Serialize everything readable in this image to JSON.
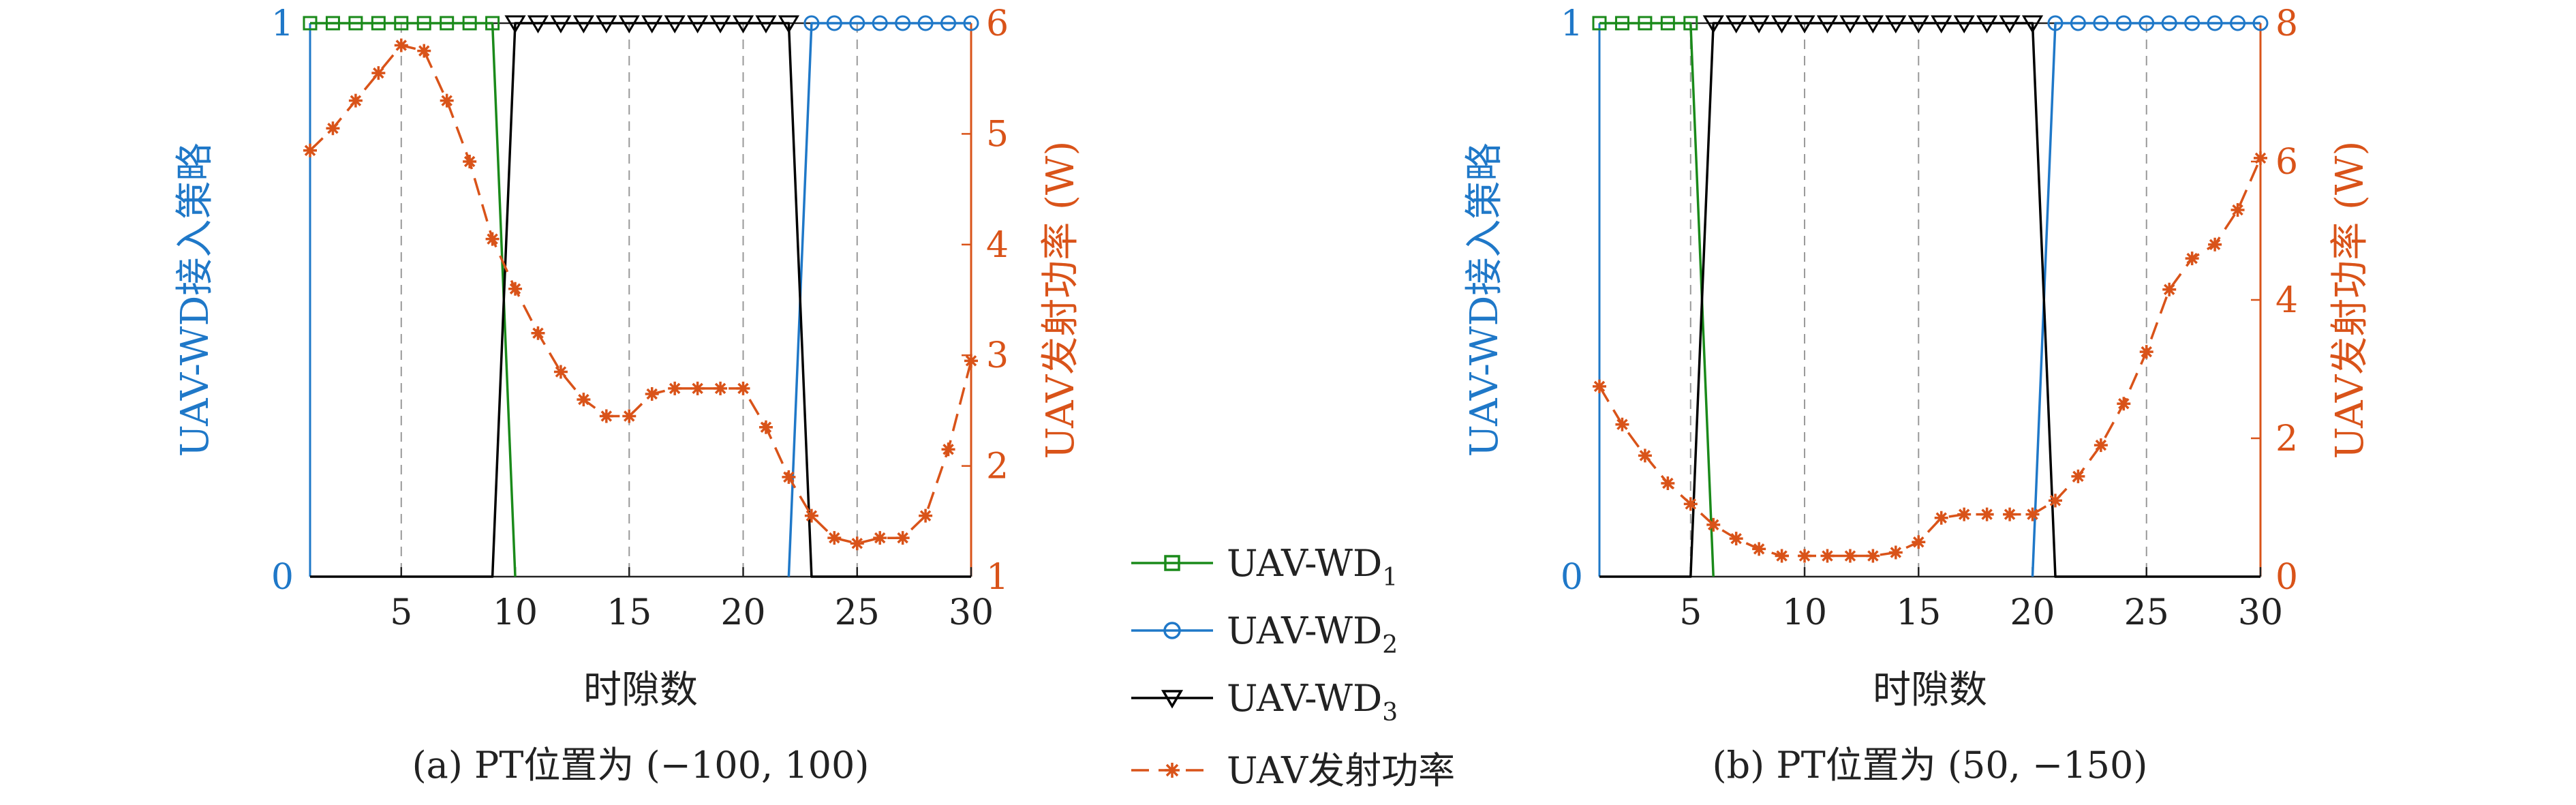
{
  "colors": {
    "left_axis": "#1f78c8",
    "right_axis": "#d95319",
    "wd1": "#1a8a1a",
    "wd2": "#1f78c8",
    "wd3": "#000000",
    "power": "#d95319",
    "grid": "#999999"
  },
  "legend": {
    "wd1_main": "UAV-WD",
    "wd1_sub": "1",
    "wd2_main": "UAV-WD",
    "wd2_sub": "2",
    "wd3_main": "UAV-WD",
    "wd3_sub": "3",
    "power": "UAV发射功率"
  },
  "chart_data": [
    {
      "type": "line",
      "caption": "(a) PT位置为 (−100, 100)",
      "xlabel": "时隙数",
      "ylabel_left": "UAV-WD接入策略",
      "ylabel_right": "UAV发射功率 (W)",
      "xlim": [
        1,
        30
      ],
      "xticks": [
        5,
        10,
        15,
        20,
        25,
        30
      ],
      "ylim_left": [
        0,
        1
      ],
      "yticks_left": [
        0,
        1
      ],
      "ylim_right": [
        1,
        6
      ],
      "yticks_right": [
        1,
        2,
        3,
        4,
        5,
        6
      ],
      "grid_x": [
        5,
        15,
        20,
        25
      ],
      "series": [
        {
          "name": "UAV-WD1",
          "axis": "left",
          "marker": "square",
          "x": [
            1,
            2,
            3,
            4,
            5,
            6,
            7,
            8,
            9,
            10
          ],
          "y": [
            1,
            1,
            1,
            1,
            1,
            1,
            1,
            1,
            1,
            0
          ]
        },
        {
          "name": "UAV-WD2",
          "axis": "left",
          "marker": "circle",
          "x": [
            22,
            23,
            24,
            25,
            26,
            27,
            28,
            29,
            30
          ],
          "y": [
            0,
            1,
            1,
            1,
            1,
            1,
            1,
            1,
            1
          ]
        },
        {
          "name": "UAV-WD3",
          "axis": "left",
          "marker": "triangle",
          "x": [
            1,
            9,
            10,
            11,
            12,
            13,
            14,
            15,
            16,
            17,
            18,
            19,
            20,
            21,
            22,
            23,
            30
          ],
          "y": [
            0,
            0,
            1,
            1,
            1,
            1,
            1,
            1,
            1,
            1,
            1,
            1,
            1,
            1,
            1,
            0,
            0
          ]
        },
        {
          "name": "UAV发射功率",
          "axis": "right",
          "marker": "asterisk",
          "x": [
            1,
            2,
            3,
            4,
            5,
            6,
            7,
            8,
            9,
            10,
            11,
            12,
            13,
            14,
            15,
            16,
            17,
            18,
            19,
            20,
            21,
            22,
            23,
            24,
            25,
            26,
            27,
            28,
            29,
            30
          ],
          "y": [
            4.85,
            5.05,
            5.3,
            5.55,
            5.8,
            5.75,
            5.3,
            4.75,
            4.05,
            3.6,
            3.2,
            2.85,
            2.6,
            2.45,
            2.45,
            2.65,
            2.7,
            2.7,
            2.7,
            2.7,
            2.35,
            1.9,
            1.55,
            1.35,
            1.3,
            1.35,
            1.35,
            1.55,
            2.15,
            2.95
          ]
        }
      ]
    },
    {
      "type": "line",
      "caption": "(b) PT位置为 (50, −150)",
      "xlabel": "时隙数",
      "ylabel_left": "UAV-WD接入策略",
      "ylabel_right": "UAV发射功率 (W)",
      "xlim": [
        1,
        30
      ],
      "xticks": [
        5,
        10,
        15,
        20,
        25,
        30
      ],
      "ylim_left": [
        0,
        1
      ],
      "yticks_left": [
        0,
        1
      ],
      "ylim_right": [
        0,
        8
      ],
      "yticks_right": [
        0,
        2,
        4,
        6,
        8
      ],
      "grid_x": [
        5,
        10,
        15,
        25
      ],
      "series": [
        {
          "name": "UAV-WD1",
          "axis": "left",
          "marker": "square",
          "x": [
            1,
            2,
            3,
            4,
            5,
            6
          ],
          "y": [
            1,
            1,
            1,
            1,
            1,
            0
          ]
        },
        {
          "name": "UAV-WD2",
          "axis": "left",
          "marker": "circle",
          "x": [
            20,
            21,
            22,
            23,
            24,
            25,
            26,
            27,
            28,
            29,
            30
          ],
          "y": [
            0,
            1,
            1,
            1,
            1,
            1,
            1,
            1,
            1,
            1,
            1
          ]
        },
        {
          "name": "UAV-WD3",
          "axis": "left",
          "marker": "triangle",
          "x": [
            1,
            5,
            6,
            7,
            8,
            9,
            10,
            11,
            12,
            13,
            14,
            15,
            16,
            17,
            18,
            19,
            20,
            21,
            30
          ],
          "y": [
            0,
            0,
            1,
            1,
            1,
            1,
            1,
            1,
            1,
            1,
            1,
            1,
            1,
            1,
            1,
            1,
            1,
            0,
            0
          ]
        },
        {
          "name": "UAV发射功率",
          "axis": "right",
          "marker": "asterisk",
          "x": [
            1,
            2,
            3,
            4,
            5,
            6,
            7,
            8,
            9,
            10,
            11,
            12,
            13,
            14,
            15,
            16,
            17,
            18,
            19,
            20,
            21,
            22,
            23,
            24,
            25,
            26,
            27,
            28,
            29,
            30
          ],
          "y": [
            2.75,
            2.2,
            1.75,
            1.35,
            1.05,
            0.75,
            0.55,
            0.4,
            0.3,
            0.3,
            0.3,
            0.3,
            0.3,
            0.35,
            0.5,
            0.85,
            0.9,
            0.9,
            0.9,
            0.9,
            1.1,
            1.45,
            1.9,
            2.5,
            3.25,
            4.15,
            4.6,
            4.8,
            5.3,
            6.05
          ]
        }
      ]
    }
  ]
}
